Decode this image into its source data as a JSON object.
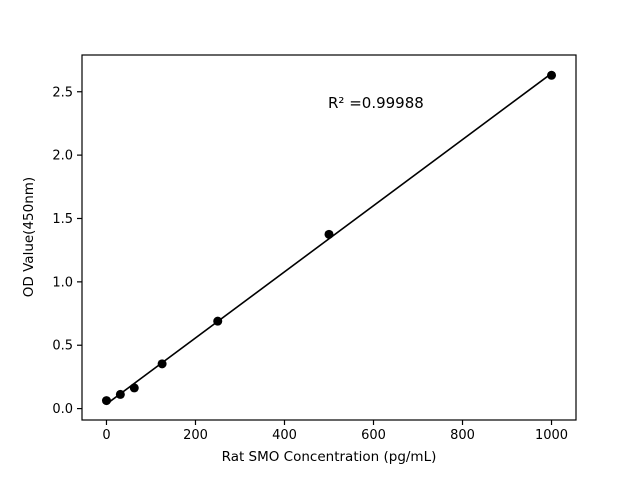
{
  "figure": {
    "background": "#ffffff",
    "frame_color": "#000000"
  },
  "chart_data": {
    "type": "scatter",
    "title": "",
    "xlabel": "Rat SMO Concentration (pg/mL)",
    "ylabel": "OD Value(450nm)",
    "x": [
      0,
      31.2,
      62.5,
      125,
      250,
      500,
      1000
    ],
    "y": [
      0.063,
      0.112,
      0.163,
      0.353,
      0.69,
      1.375,
      2.63
    ],
    "xticks": [
      0,
      200,
      400,
      600,
      800,
      1000
    ],
    "yticks": [
      0.0,
      0.5,
      1.0,
      1.5,
      2.0,
      2.5
    ],
    "xlim": [
      -55,
      1055
    ],
    "ylim": [
      -0.09,
      2.79
    ],
    "annotation": "R² =0.99988",
    "fit": "linear",
    "marker_color": "#000000",
    "line_color": "#000000",
    "legend": "none",
    "grid": false
  }
}
